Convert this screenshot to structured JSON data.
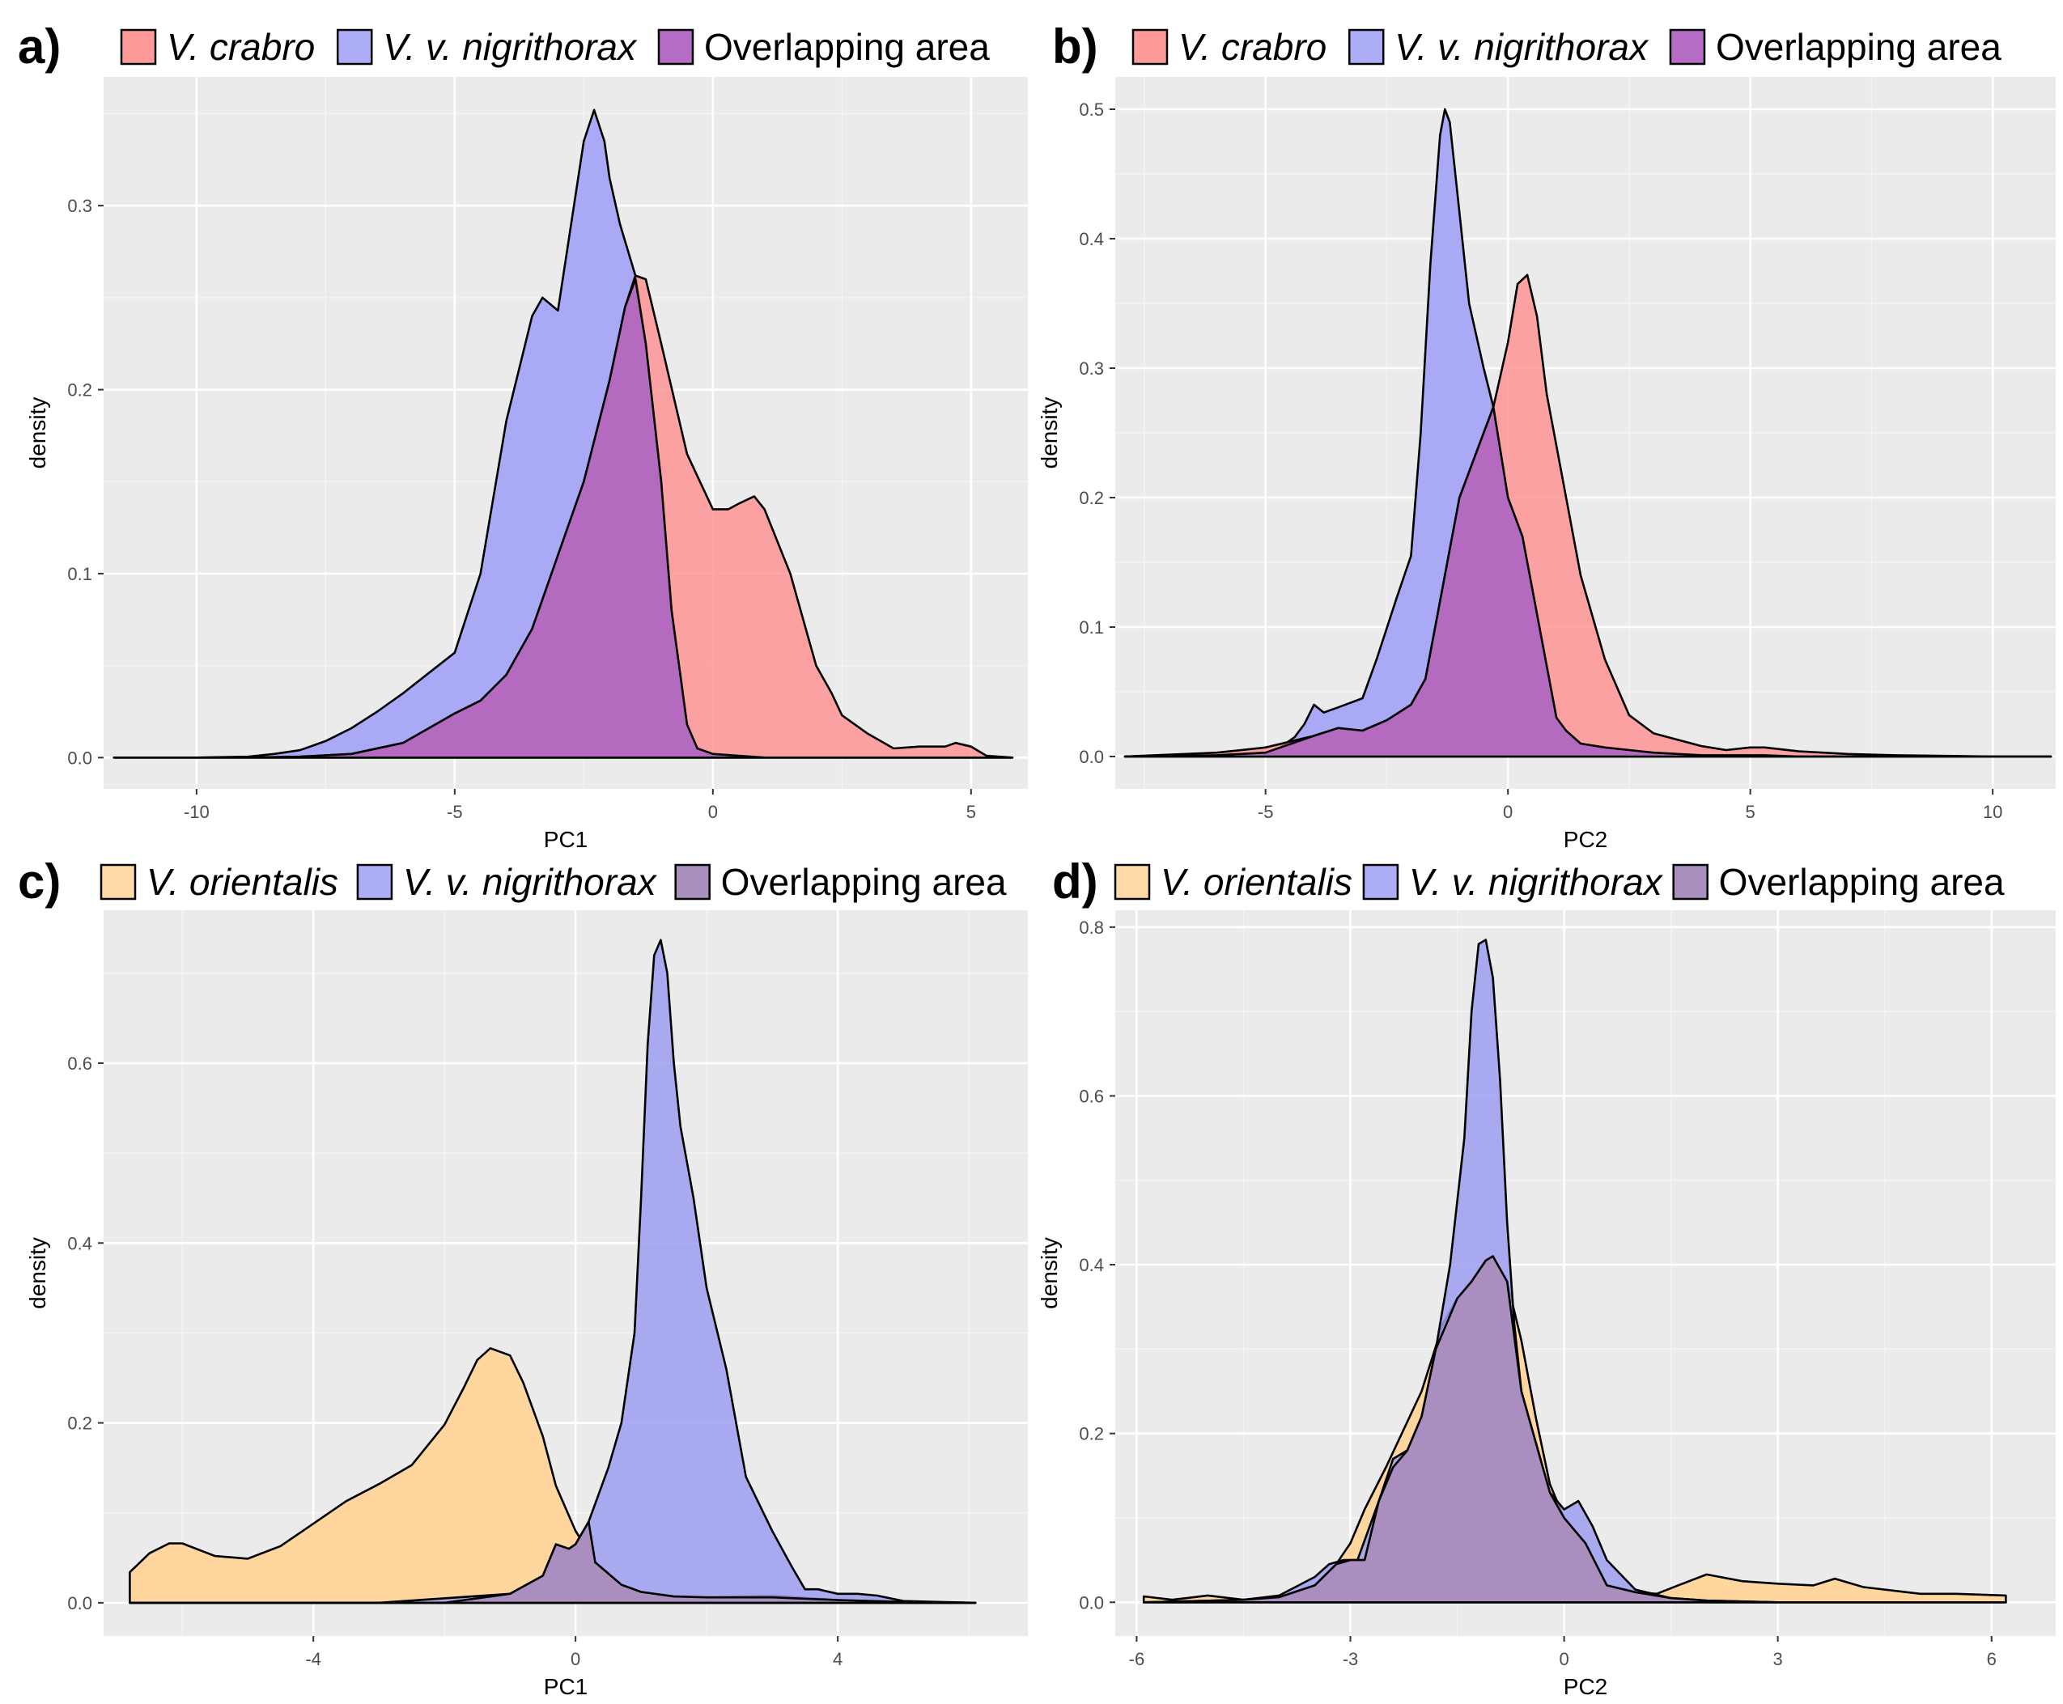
{
  "colors": {
    "panel_background": "#EBEBEB",
    "grid": "#FFFFFF",
    "curve_outline": "#000000",
    "tick_text": "#4D4D4D"
  },
  "chart_data": [
    {
      "panel": "a)",
      "type": "area",
      "xlabel": "PC1",
      "ylabel": "density",
      "xlim": [
        -11.8,
        6.1
      ],
      "ylim": [
        -0.017,
        0.37
      ],
      "xticks": [
        -10,
        -5,
        0,
        5
      ],
      "xtick_labels": [
        "-10",
        "-5",
        "0",
        "5"
      ],
      "yticks": [
        0,
        0.1,
        0.2,
        0.3
      ],
      "ytick_labels": [
        "0.0",
        "0.1",
        "0.2",
        "0.3"
      ],
      "legend": [
        {
          "label": "V. crabro",
          "italic": true,
          "color": "#FF9A9A"
        },
        {
          "label": "V. v. nigrithorax",
          "italic": true,
          "color": "#ADADF8"
        },
        {
          "label": "Overlapping area",
          "italic": false,
          "color": "#B66CC4"
        }
      ],
      "series": [
        {
          "name": "V. v. nigrithorax",
          "fill": "#A9A9F5",
          "opacity": 1,
          "x": [
            -11.6,
            -10,
            -9,
            -8.5,
            -8,
            -7.5,
            -7,
            -6.5,
            -6,
            -5.5,
            -5,
            -4.5,
            -4,
            -3.5,
            -3.3,
            -3,
            -2.8,
            -2.5,
            -2.3,
            -2.1,
            -2,
            -1.8,
            -1.5,
            -1.3,
            -1,
            -0.8,
            -0.5,
            -0.3,
            0,
            0.5,
            1,
            2,
            4,
            5.8
          ],
          "y": [
            0.0,
            0.0,
            0.0005,
            0.002,
            0.004,
            0.009,
            0.016,
            0.025,
            0.035,
            0.046,
            0.057,
            0.1,
            0.183,
            0.24,
            0.25,
            0.243,
            0.28,
            0.335,
            0.352,
            0.335,
            0.315,
            0.29,
            0.262,
            0.225,
            0.15,
            0.08,
            0.018,
            0.005,
            0.002,
            0.001,
            0.0,
            0.0,
            0.0,
            0.0
          ]
        },
        {
          "name": "V. crabro",
          "fill": "#FF8C8C",
          "opacity": 0.78,
          "x": [
            -11.6,
            -9,
            -8,
            -7,
            -6,
            -5,
            -4.5,
            -4,
            -3.5,
            -3,
            -2.5,
            -2,
            -1.7,
            -1.5,
            -1.3,
            -1,
            -0.5,
            0,
            0.3,
            0.5,
            0.8,
            1,
            1.5,
            2,
            2.3,
            2.5,
            3,
            3.5,
            4,
            4.5,
            4.7,
            5,
            5.3,
            5.8
          ],
          "y": [
            0.0,
            0.0,
            0.0005,
            0.002,
            0.008,
            0.024,
            0.031,
            0.045,
            0.07,
            0.11,
            0.15,
            0.205,
            0.245,
            0.262,
            0.26,
            0.225,
            0.165,
            0.135,
            0.135,
            0.138,
            0.142,
            0.135,
            0.1,
            0.05,
            0.035,
            0.023,
            0.013,
            0.005,
            0.006,
            0.006,
            0.008,
            0.006,
            0.001,
            0.0
          ]
        },
        {
          "name": "Overlapping area",
          "fill": "#B36ABF",
          "opacity": 1,
          "x": [
            -11.6,
            -10,
            -9,
            -8,
            -7,
            -6,
            -5,
            -4.5,
            -4,
            -3.5,
            -3,
            -2.5,
            -2,
            -1.7,
            -1.5,
            -1.3,
            -1,
            -0.8,
            -0.5,
            -0.3,
            0,
            0.5,
            1,
            2,
            4,
            5.8
          ],
          "y": [
            0.0,
            0.0,
            0.0,
            0.0005,
            0.002,
            0.008,
            0.024,
            0.031,
            0.045,
            0.07,
            0.11,
            0.15,
            0.205,
            0.245,
            0.26,
            0.225,
            0.15,
            0.08,
            0.018,
            0.005,
            0.002,
            0.001,
            0.0,
            0.0,
            0.0,
            0.0
          ]
        }
      ]
    },
    {
      "panel": "b)",
      "type": "area",
      "xlabel": "PC2",
      "ylabel": "density",
      "xlim": [
        -8.1,
        11.3
      ],
      "ylim": [
        -0.025,
        0.525
      ],
      "xticks": [
        -5,
        0,
        5,
        10
      ],
      "xtick_labels": [
        "-5",
        "0",
        "5",
        "10"
      ],
      "yticks": [
        0,
        0.1,
        0.2,
        0.3,
        0.4,
        0.5
      ],
      "ytick_labels": [
        "0.0",
        "0.1",
        "0.2",
        "0.3",
        "0.4",
        "0.5"
      ],
      "legend": [
        {
          "label": "V. crabro",
          "italic": true,
          "color": "#FF9A9A"
        },
        {
          "label": "V. v. nigrithorax",
          "italic": true,
          "color": "#ADADF8"
        },
        {
          "label": "Overlapping area",
          "italic": false,
          "color": "#B66CC4"
        }
      ],
      "series": [
        {
          "name": "V. v. nigrithorax",
          "fill": "#A9A9F5",
          "opacity": 1,
          "x": [
            -7.9,
            -6,
            -5,
            -4.7,
            -4.4,
            -4.2,
            -4,
            -3.8,
            -3.5,
            -3,
            -2.7,
            -2.3,
            -2,
            -1.8,
            -1.6,
            -1.4,
            -1.3,
            -1.2,
            -1,
            -0.8,
            -0.5,
            -0.3,
            0,
            0.3,
            0.6,
            1,
            1.2,
            1.5,
            2,
            2.5,
            3,
            4,
            6,
            11.2
          ],
          "y": [
            0.0,
            0.001,
            0.003,
            0.007,
            0.015,
            0.025,
            0.04,
            0.034,
            0.038,
            0.045,
            0.076,
            0.122,
            0.155,
            0.25,
            0.38,
            0.48,
            0.5,
            0.49,
            0.42,
            0.35,
            0.3,
            0.27,
            0.2,
            0.17,
            0.11,
            0.03,
            0.02,
            0.01,
            0.007,
            0.005,
            0.003,
            0.001,
            0.0,
            0.0
          ]
        },
        {
          "name": "V. crabro",
          "fill": "#FF8C8C",
          "opacity": 0.78,
          "x": [
            -7.9,
            -6,
            -5,
            -4,
            -3.5,
            -3,
            -2.5,
            -2,
            -1.7,
            -1.5,
            -1.2,
            -1,
            -0.7,
            -0.3,
            0,
            0.2,
            0.4,
            0.6,
            0.8,
            1,
            1.5,
            2,
            2.5,
            3,
            3.5,
            4,
            4.5,
            5,
            5.3,
            6,
            7,
            8,
            10,
            11.2
          ],
          "y": [
            0.0,
            0.003,
            0.007,
            0.016,
            0.022,
            0.02,
            0.028,
            0.04,
            0.06,
            0.1,
            0.16,
            0.2,
            0.23,
            0.27,
            0.32,
            0.365,
            0.372,
            0.34,
            0.28,
            0.24,
            0.14,
            0.075,
            0.032,
            0.018,
            0.013,
            0.008,
            0.005,
            0.007,
            0.007,
            0.004,
            0.002,
            0.001,
            0.0,
            0.0
          ]
        },
        {
          "name": "Overlapping area",
          "fill": "#B36ABF",
          "opacity": 1,
          "x": [
            -7.9,
            -6,
            -5,
            -4,
            -3.5,
            -3,
            -2.5,
            -2,
            -1.7,
            -1.5,
            -1.2,
            -1,
            -0.7,
            -0.3,
            0,
            0.3,
            0.6,
            1,
            1.2,
            1.5,
            2,
            2.5,
            3,
            3.5,
            4,
            4.5,
            5,
            5.3,
            6,
            7,
            8,
            10,
            11.2
          ],
          "y": [
            0.0,
            0.001,
            0.003,
            0.016,
            0.022,
            0.02,
            0.028,
            0.04,
            0.06,
            0.1,
            0.16,
            0.2,
            0.23,
            0.27,
            0.2,
            0.17,
            0.11,
            0.03,
            0.02,
            0.01,
            0.007,
            0.005,
            0.003,
            0.002,
            0.001,
            0.001,
            0.001,
            0.001,
            0.0,
            0.0,
            0.0,
            0.0,
            0.0
          ]
        }
      ]
    },
    {
      "panel": "c)",
      "type": "area",
      "xlabel": "PC1",
      "ylabel": "density",
      "xlim": [
        -7.2,
        6.9
      ],
      "ylim": [
        -0.037,
        0.77
      ],
      "xticks": [
        -4,
        0,
        4
      ],
      "xtick_labels": [
        "-4",
        "0",
        "4"
      ],
      "yticks": [
        0,
        0.2,
        0.4,
        0.6
      ],
      "ytick_labels": [
        "0.0",
        "0.2",
        "0.4",
        "0.6"
      ],
      "legend": [
        {
          "label": "V. orientalis",
          "italic": true,
          "color": "#FFD9A6"
        },
        {
          "label": "V. v. nigrithorax",
          "italic": true,
          "color": "#ADADF8"
        },
        {
          "label": "Overlapping area",
          "italic": false,
          "color": "#A98FBE"
        }
      ],
      "series": [
        {
          "name": "V. orientalis",
          "fill": "#FFD69E",
          "opacity": 1,
          "x": [
            -6.8,
            -6.5,
            -6.2,
            -6,
            -5.5,
            -5,
            -4.5,
            -4,
            -3.5,
            -3,
            -2.5,
            -2,
            -1.7,
            -1.5,
            -1.3,
            -1,
            -0.8,
            -0.5,
            -0.3,
            0,
            0.3,
            0.7,
            1,
            1.5,
            2,
            3,
            4,
            5,
            6.1
          ],
          "y": [
            0.034,
            0.055,
            0.066,
            0.066,
            0.052,
            0.049,
            0.063,
            0.088,
            0.113,
            0.132,
            0.153,
            0.198,
            0.24,
            0.27,
            0.283,
            0.275,
            0.245,
            0.185,
            0.13,
            0.08,
            0.045,
            0.02,
            0.012,
            0.007,
            0.006,
            0.008,
            0.003,
            0.001,
            0.0
          ]
        },
        {
          "name": "V. v. nigrithorax",
          "fill": "#9D9DF0",
          "opacity": 0.85,
          "x": [
            -6.8,
            -3,
            -1,
            -0.5,
            -0.3,
            -0.1,
            0,
            0.2,
            0.5,
            0.7,
            0.9,
            1,
            1.1,
            1.2,
            1.3,
            1.4,
            1.5,
            1.6,
            1.8,
            2,
            2.3,
            2.6,
            3,
            3.3,
            3.5,
            3.7,
            4,
            4.3,
            4.6,
            5,
            6.1
          ],
          "y": [
            0.0,
            0.0,
            0.01,
            0.03,
            0.065,
            0.06,
            0.065,
            0.09,
            0.15,
            0.2,
            0.3,
            0.45,
            0.62,
            0.72,
            0.737,
            0.7,
            0.6,
            0.53,
            0.45,
            0.35,
            0.26,
            0.14,
            0.08,
            0.04,
            0.015,
            0.015,
            0.01,
            0.01,
            0.008,
            0.002,
            0.0
          ]
        },
        {
          "name": "Overlapping area",
          "fill": "#A98EBF",
          "opacity": 1,
          "x": [
            -6.8,
            -3,
            -2,
            -1,
            -0.5,
            -0.3,
            -0.1,
            0,
            0.2,
            0.3,
            0.7,
            1,
            1.5,
            2,
            2.5,
            3,
            4,
            5,
            6.1
          ],
          "y": [
            0.0,
            0.0,
            0.0,
            0.01,
            0.03,
            0.065,
            0.06,
            0.065,
            0.09,
            0.045,
            0.02,
            0.012,
            0.007,
            0.006,
            0.006,
            0.006,
            0.003,
            0.001,
            0.0
          ]
        }
      ]
    },
    {
      "panel": "d)",
      "type": "area",
      "xlabel": "PC2",
      "ylabel": "density",
      "xlim": [
        -6.3,
        6.9
      ],
      "ylim": [
        -0.04,
        0.82
      ],
      "xticks": [
        -6,
        -3,
        0,
        3,
        6
      ],
      "xtick_labels": [
        "-6",
        "-3",
        "0",
        "3",
        "6"
      ],
      "yticks": [
        0,
        0.2,
        0.4,
        0.6,
        0.8
      ],
      "ytick_labels": [
        "0.0",
        "0.2",
        "0.4",
        "0.6",
        "0.8"
      ],
      "legend": [
        {
          "label": "V. orientalis",
          "italic": true,
          "color": "#FFD9A6"
        },
        {
          "label": "V. v. nigrithorax",
          "italic": true,
          "color": "#ADADF8"
        },
        {
          "label": "Overlapping area",
          "italic": false,
          "color": "#A98FBE"
        }
      ],
      "series": [
        {
          "name": "V. orientalis",
          "fill": "#FFD69E",
          "opacity": 1,
          "x": [
            -5.9,
            -5.5,
            -5,
            -4.5,
            -4,
            -3.5,
            -3.2,
            -3,
            -2.8,
            -2.5,
            -2,
            -1.7,
            -1.5,
            -1.3,
            -1.1,
            -1,
            -0.8,
            -0.6,
            -0.4,
            -0.2,
            0,
            0.3,
            0.6,
            1,
            1.3,
            1.6,
            2,
            2.5,
            3,
            3.5,
            3.8,
            4.2,
            5,
            5.5,
            6.2
          ],
          "y": [
            0.007,
            0.003,
            0.008,
            0.003,
            0.006,
            0.02,
            0.045,
            0.07,
            0.11,
            0.16,
            0.25,
            0.33,
            0.36,
            0.38,
            0.405,
            0.41,
            0.38,
            0.31,
            0.22,
            0.14,
            0.1,
            0.07,
            0.02,
            0.012,
            0.01,
            0.02,
            0.033,
            0.025,
            0.022,
            0.02,
            0.028,
            0.018,
            0.01,
            0.01,
            0.008
          ]
        },
        {
          "name": "V. v. nigrithorax",
          "fill": "#9D9DF0",
          "opacity": 0.85,
          "x": [
            -5.9,
            -4.5,
            -4,
            -3.5,
            -3.3,
            -3.1,
            -2.9,
            -2.6,
            -2.4,
            -2.2,
            -2,
            -1.8,
            -1.6,
            -1.4,
            -1.3,
            -1.2,
            -1.1,
            -1,
            -0.9,
            -0.8,
            -0.7,
            -0.6,
            -0.5,
            -0.4,
            -0.2,
            0,
            0.2,
            0.4,
            0.6,
            1,
            1.5,
            2,
            3,
            6.2
          ],
          "y": [
            0.0,
            0.003,
            0.008,
            0.03,
            0.045,
            0.05,
            0.05,
            0.12,
            0.17,
            0.18,
            0.22,
            0.3,
            0.4,
            0.55,
            0.7,
            0.78,
            0.785,
            0.74,
            0.62,
            0.45,
            0.33,
            0.25,
            0.22,
            0.19,
            0.13,
            0.11,
            0.12,
            0.09,
            0.05,
            0.015,
            0.005,
            0.002,
            0.0,
            0.0
          ]
        },
        {
          "name": "Overlapping area",
          "fill": "#A98EBF",
          "opacity": 1,
          "x": [
            -5.9,
            -4.5,
            -4,
            -3.5,
            -3.2,
            -3,
            -2.8,
            -2.6,
            -2.4,
            -2.2,
            -2,
            -1.8,
            -1.5,
            -1.3,
            -1.1,
            -1,
            -0.8,
            -0.6,
            -0.4,
            -0.2,
            0,
            0.3,
            0.6,
            1,
            1.5,
            2,
            3,
            6.2
          ],
          "y": [
            0.0,
            0.003,
            0.006,
            0.02,
            0.045,
            0.05,
            0.05,
            0.12,
            0.16,
            0.18,
            0.22,
            0.3,
            0.36,
            0.38,
            0.405,
            0.41,
            0.38,
            0.25,
            0.19,
            0.13,
            0.1,
            0.07,
            0.02,
            0.012,
            0.005,
            0.002,
            0.0,
            0.0
          ]
        }
      ]
    }
  ]
}
